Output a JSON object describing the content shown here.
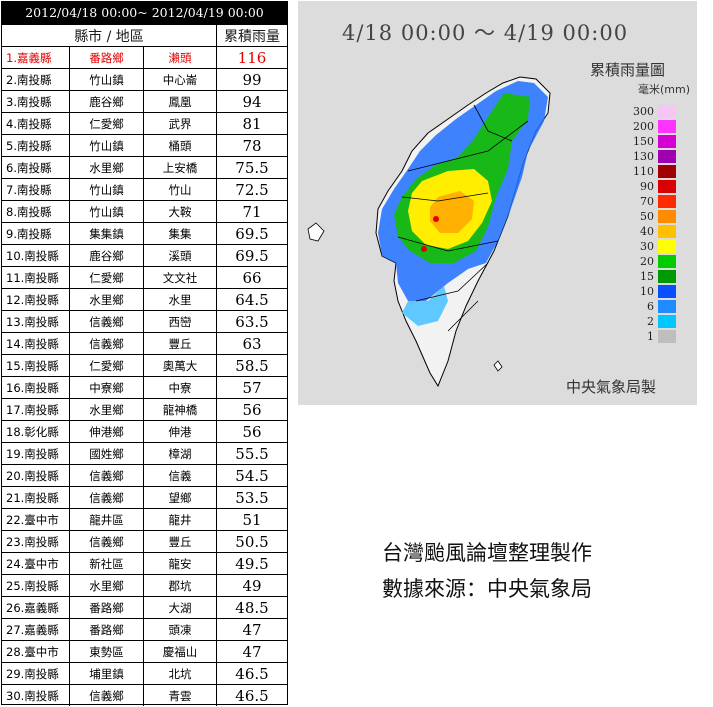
{
  "table": {
    "date_range": "2012/04/18 00:00~ 2012/04/19 00:00",
    "header_location": "縣市 / 地區",
    "header_rain": "累積雨量",
    "rows": [
      {
        "rank": "1.",
        "county": "嘉義縣",
        "town": "番路鄉",
        "station": "瀨頭",
        "rain": "116"
      },
      {
        "rank": "2.",
        "county": "南投縣",
        "town": "竹山鎮",
        "station": "中心崙",
        "rain": "99"
      },
      {
        "rank": "3.",
        "county": "南投縣",
        "town": "鹿谷鄉",
        "station": "鳳凰",
        "rain": "94"
      },
      {
        "rank": "4.",
        "county": "南投縣",
        "town": "仁愛鄉",
        "station": "武界",
        "rain": "81"
      },
      {
        "rank": "5.",
        "county": "南投縣",
        "town": "竹山鎮",
        "station": "桶頭",
        "rain": "78"
      },
      {
        "rank": "6.",
        "county": "南投縣",
        "town": "水里鄉",
        "station": "上安橋",
        "rain": "75.5"
      },
      {
        "rank": "7.",
        "county": "南投縣",
        "town": "竹山鎮",
        "station": "竹山",
        "rain": "72.5"
      },
      {
        "rank": "8.",
        "county": "南投縣",
        "town": "竹山鎮",
        "station": "大鞍",
        "rain": "71"
      },
      {
        "rank": "9.",
        "county": "南投縣",
        "town": "集集鎮",
        "station": "集集",
        "rain": "69.5"
      },
      {
        "rank": "10.",
        "county": "南投縣",
        "town": "鹿谷鄉",
        "station": "溪頭",
        "rain": "69.5"
      },
      {
        "rank": "11.",
        "county": "南投縣",
        "town": "仁愛鄉",
        "station": "文文社",
        "rain": "66"
      },
      {
        "rank": "12.",
        "county": "南投縣",
        "town": "水里鄉",
        "station": "水里",
        "rain": "64.5"
      },
      {
        "rank": "13.",
        "county": "南投縣",
        "town": "信義鄉",
        "station": "西巒",
        "rain": "63.5"
      },
      {
        "rank": "14.",
        "county": "南投縣",
        "town": "信義鄉",
        "station": "豐丘",
        "rain": "63"
      },
      {
        "rank": "15.",
        "county": "南投縣",
        "town": "仁愛鄉",
        "station": "奧萬大",
        "rain": "58.5"
      },
      {
        "rank": "16.",
        "county": "南投縣",
        "town": "中寮鄉",
        "station": "中寮",
        "rain": "57"
      },
      {
        "rank": "17.",
        "county": "南投縣",
        "town": "水里鄉",
        "station": "龍神橋",
        "rain": "56"
      },
      {
        "rank": "18.",
        "county": "彰化縣",
        "town": "伸港鄉",
        "station": "伸港",
        "rain": "56"
      },
      {
        "rank": "19.",
        "county": "南投縣",
        "town": "國姓鄉",
        "station": "樟湖",
        "rain": "55.5"
      },
      {
        "rank": "20.",
        "county": "南投縣",
        "town": "信義鄉",
        "station": "信義",
        "rain": "54.5"
      },
      {
        "rank": "21.",
        "county": "南投縣",
        "town": "信義鄉",
        "station": "望鄉",
        "rain": "53.5"
      },
      {
        "rank": "22.",
        "county": "臺中市",
        "town": "龍井區",
        "station": "龍井",
        "rain": "51"
      },
      {
        "rank": "23.",
        "county": "南投縣",
        "town": "信義鄉",
        "station": "豐丘",
        "rain": "50.5"
      },
      {
        "rank": "24.",
        "county": "臺中市",
        "town": "新社區",
        "station": "龍安",
        "rain": "49.5"
      },
      {
        "rank": "25.",
        "county": "南投縣",
        "town": "水里鄉",
        "station": "郡坑",
        "rain": "49"
      },
      {
        "rank": "26.",
        "county": "嘉義縣",
        "town": "番路鄉",
        "station": "大湖",
        "rain": "48.5"
      },
      {
        "rank": "27.",
        "county": "嘉義縣",
        "town": "番路鄉",
        "station": "頭凍",
        "rain": "47"
      },
      {
        "rank": "28.",
        "county": "臺中市",
        "town": "東勢區",
        "station": "慶福山",
        "rain": "47"
      },
      {
        "rank": "29.",
        "county": "南投縣",
        "town": "埔里鎮",
        "station": "北坑",
        "rain": "46.5"
      },
      {
        "rank": "30.",
        "county": "南投縣",
        "town": "信義鄉",
        "station": "青雲",
        "rain": "46.5"
      }
    ]
  },
  "map": {
    "title": "4/18 00:00 ～ 4/19 00:00",
    "legend_title": "累積雨量圖",
    "legend_unit": "毫米(mm)",
    "legend": [
      {
        "label": "300",
        "color": "#f5c6f5"
      },
      {
        "label": "200",
        "color": "#ff33ff"
      },
      {
        "label": "150",
        "color": "#d400d4"
      },
      {
        "label": "130",
        "color": "#a000b0"
      },
      {
        "label": "110",
        "color": "#a00000"
      },
      {
        "label": "90",
        "color": "#d80000"
      },
      {
        "label": "70",
        "color": "#ff2a00"
      },
      {
        "label": "50",
        "color": "#ff8c00"
      },
      {
        "label": "40",
        "color": "#ffc000"
      },
      {
        "label": "30",
        "color": "#ffff00"
      },
      {
        "label": "20",
        "color": "#00cc00"
      },
      {
        "label": "15",
        "color": "#009a00"
      },
      {
        "label": "10",
        "color": "#0a4fff"
      },
      {
        "label": "6",
        "color": "#1e8cff"
      },
      {
        "label": "2",
        "color": "#00c8ff"
      },
      {
        "label": "1",
        "color": "#bebebe"
      }
    ],
    "credit": "中央氣象局製"
  },
  "caption": {
    "line1": "台灣颱風論壇整理製作",
    "line2": "數據來源：中央氣象局"
  }
}
